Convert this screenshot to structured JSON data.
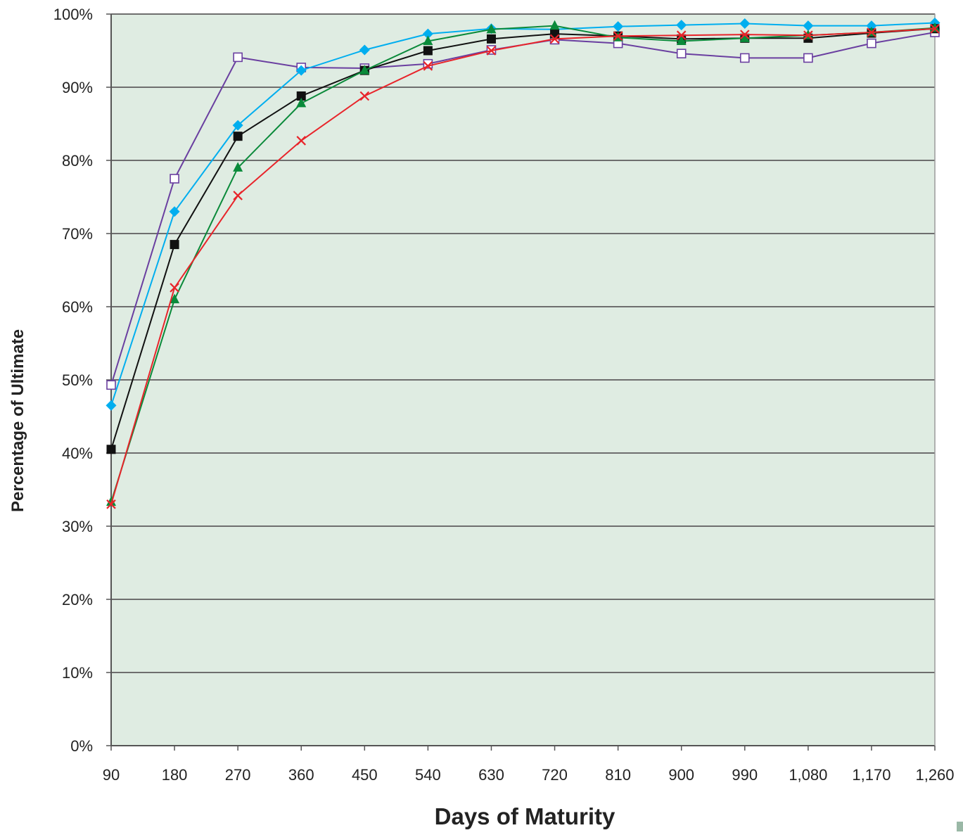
{
  "chart_data": {
    "type": "line",
    "xlabel": "Days of Maturity",
    "ylabel": "Percentage of Ultimate",
    "x": [
      90,
      180,
      270,
      360,
      450,
      540,
      630,
      720,
      810,
      900,
      990,
      1080,
      1170,
      1260
    ],
    "x_tick_labels": [
      "90",
      "180",
      "270",
      "360",
      "450",
      "540",
      "630",
      "720",
      "810",
      "900",
      "990",
      "1,080",
      "1,170",
      "1,260"
    ],
    "y_ticks": [
      0,
      10,
      20,
      30,
      40,
      50,
      60,
      70,
      80,
      90,
      100
    ],
    "y_tick_labels": [
      "0%",
      "10%",
      "20%",
      "30%",
      "40%",
      "50%",
      "60%",
      "70%",
      "80%",
      "90%",
      "100%"
    ],
    "ylim": [
      0,
      100
    ],
    "grid": true,
    "legend": "none",
    "plot_background": "#dfece2",
    "series": [
      {
        "color": "#6a3fa0",
        "marker": "open-square",
        "values": [
          49.3,
          77.5,
          94.1,
          92.7,
          92.6,
          93.2,
          95.1,
          96.5,
          96.0,
          94.6,
          94.0,
          94.0,
          96.0,
          97.5
        ]
      },
      {
        "color": "#00aeef",
        "marker": "diamond",
        "values": [
          46.5,
          73.0,
          84.8,
          92.3,
          95.1,
          97.3,
          98.0,
          97.9,
          98.3,
          98.5,
          98.7,
          98.4,
          98.4,
          98.8
        ]
      },
      {
        "color": "#111111",
        "marker": "filled-square",
        "values": [
          40.5,
          68.5,
          83.3,
          88.8,
          92.3,
          95.0,
          96.6,
          97.3,
          97.0,
          96.6,
          96.7,
          96.7,
          97.4,
          98.0
        ]
      },
      {
        "color": "#0a8a3a",
        "marker": "triangle",
        "values": [
          33.3,
          61.0,
          79.0,
          87.8,
          92.3,
          96.3,
          97.9,
          98.4,
          96.8,
          96.3,
          96.7,
          97.1,
          97.5,
          98.1
        ]
      },
      {
        "color": "#e8242a",
        "marker": "x",
        "values": [
          33.0,
          62.6,
          75.2,
          82.7,
          88.8,
          92.9,
          95.0,
          96.6,
          97.0,
          97.1,
          97.2,
          97.1,
          97.5,
          98.0
        ]
      }
    ]
  }
}
